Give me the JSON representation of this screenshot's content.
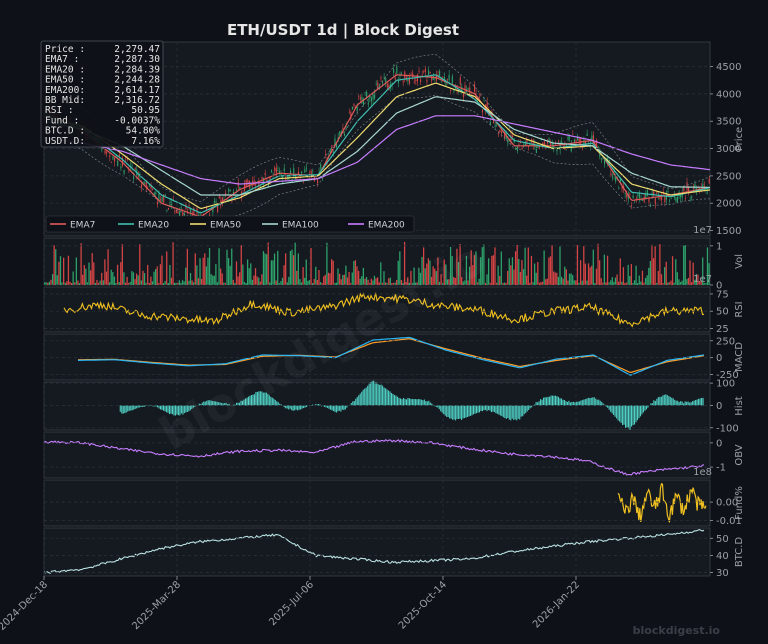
{
  "title": "ETH/USDT  1d  |  Block Digest",
  "watermark": "blockdigest.io",
  "brand": "blockdigest.io",
  "info_box": [
    {
      "k": "Price :",
      "v": "2,279.47"
    },
    {
      "k": "EMA7  :",
      "v": "2,287.30"
    },
    {
      "k": "EMA20 :",
      "v": "2,284.39"
    },
    {
      "k": "EMA50 :",
      "v": "2,244.28"
    },
    {
      "k": "EMA200:",
      "v": "2,614.17"
    },
    {
      "k": "BB Mid:",
      "v": "2,316.72"
    },
    {
      "k": "RSI   :",
      "v": "50.95"
    },
    {
      "k": "Fund  :",
      "v": "-0.0037%"
    },
    {
      "k": "BTC.D :",
      "v": "54.80%"
    },
    {
      "k": "USDT.D:",
      "v": "7.16%"
    }
  ],
  "x_tick_labels": [
    "2024-Dec-18",
    "2025-Mar-28",
    "2025-Jul-06",
    "2025-Oct-14",
    "2026-Jan-22"
  ],
  "colors": {
    "ema7": "#e05a5a",
    "ema20": "#3fbfb0",
    "ema50": "#f0dc6e",
    "ema100": "#a8d8d0",
    "ema200": "#c77dff",
    "rsi": "#f0c020",
    "macd": "#29b6f6",
    "signal": "#ff9f2a",
    "hist": "#4fd1c5",
    "obv": "#c77dff",
    "fund": "#f0c020",
    "btcd": "#b8e0e0",
    "up": "#2ea36b",
    "down": "#d64545",
    "grid": "#2a2f36"
  },
  "chart_data": [
    {
      "type": "line",
      "panel": "price",
      "ylabel": "Price",
      "y_ticks": [
        "1500",
        "2000",
        "2500",
        "3000",
        "3500",
        "4000",
        "4500"
      ],
      "ylim": [
        1400,
        4950
      ],
      "offset_text": "1e7",
      "legend": [
        "EMA7",
        "EMA20",
        "EMA50",
        "EMA100",
        "EMA200"
      ],
      "legend_placement": "lower-left",
      "x": [
        "2024-Dec-18",
        "2025-Jan-15",
        "2025-Feb-12",
        "2025-Mar-12",
        "2025-Apr-09",
        "2025-May-07",
        "2025-Jun-04",
        "2025-Jul-02",
        "2025-Jul-30",
        "2025-Aug-27",
        "2025-Sep-24",
        "2025-Oct-22",
        "2025-Nov-19",
        "2025-Dec-17",
        "2026-Jan-14",
        "2026-Feb-11",
        "2026-Mar-11",
        "2026-Apr-08"
      ],
      "series": [
        {
          "name": "EMA7",
          "values": [
            3700,
            3300,
            2750,
            2000,
            1750,
            2250,
            2550,
            2500,
            3800,
            4350,
            4300,
            4000,
            3050,
            3050,
            3150,
            2050,
            2150,
            2290
          ]
        },
        {
          "name": "EMA20",
          "values": [
            3650,
            3350,
            2800,
            2150,
            1820,
            2150,
            2500,
            2520,
            3500,
            4250,
            4350,
            3900,
            3150,
            3000,
            3100,
            2200,
            2120,
            2284
          ]
        },
        {
          "name": "EMA50",
          "values": [
            3600,
            3400,
            2900,
            2350,
            1900,
            2100,
            2450,
            2500,
            3200,
            3950,
            4200,
            3950,
            3250,
            3000,
            3050,
            2350,
            2150,
            2244
          ]
        },
        {
          "name": "EMA100",
          "values": [
            3500,
            3350,
            3050,
            2600,
            2150,
            2150,
            2350,
            2450,
            2950,
            3650,
            3950,
            3850,
            3350,
            3100,
            3050,
            2550,
            2300,
            2290
          ]
        },
        {
          "name": "EMA200",
          "values": [
            3200,
            3100,
            2950,
            2700,
            2450,
            2350,
            2400,
            2450,
            2750,
            3350,
            3600,
            3600,
            3450,
            3300,
            3150,
            2900,
            2700,
            2614
          ]
        }
      ]
    },
    {
      "type": "bar",
      "panel": "volume",
      "ylabel": "Vol",
      "y_ticks": [
        "0",
        "1"
      ],
      "ylim": [
        0,
        1.2
      ],
      "offset_text": "1e7"
    },
    {
      "type": "line",
      "panel": "rsi",
      "ylabel": "RSI",
      "y_ticks": [
        "25",
        "50",
        "75"
      ],
      "ylim": [
        20,
        85
      ],
      "values": [
        52,
        60,
        45,
        40,
        35,
        62,
        48,
        55,
        72,
        68,
        58,
        52,
        38,
        50,
        56,
        32,
        50,
        51
      ]
    },
    {
      "type": "line",
      "panel": "macd",
      "ylabel": "MACD",
      "y_ticks": [
        "-250",
        "0",
        "250"
      ],
      "ylim": [
        -330,
        350
      ],
      "series": [
        {
          "name": "MACD",
          "values": [
            -40,
            -30,
            -80,
            -120,
            -90,
            40,
            30,
            0,
            260,
            300,
            110,
            -30,
            -150,
            -20,
            40,
            -260,
            -40,
            40
          ]
        },
        {
          "name": "Signal",
          "values": [
            -30,
            -25,
            -70,
            -110,
            -100,
            20,
            35,
            10,
            220,
            280,
            130,
            -10,
            -130,
            -40,
            30,
            -220,
            -60,
            30
          ]
        }
      ]
    },
    {
      "type": "bar",
      "panel": "hist",
      "ylabel": "Hist",
      "y_ticks": [
        "-100",
        "0",
        "100"
      ],
      "ylim": [
        -110,
        105
      ]
    },
    {
      "type": "line",
      "panel": "obv",
      "ylabel": "OBV",
      "y_ticks": [
        "-1",
        "0"
      ],
      "ylim": [
        -1.45,
        0.45
      ],
      "offset_text": "1e8",
      "values": [
        0.05,
        0.0,
        -0.25,
        -0.45,
        -0.55,
        -0.35,
        -0.3,
        -0.4,
        0.05,
        0.1,
        0.0,
        -0.25,
        -0.45,
        -0.55,
        -0.75,
        -1.3,
        -1.1,
        -0.95
      ]
    },
    {
      "type": "line",
      "panel": "funding",
      "ylabel": "Fund%",
      "y_ticks": [
        "-0.01",
        "0.00"
      ],
      "ylim": [
        -0.013,
        0.012
      ],
      "x_start": "2026-Feb-11",
      "values": [
        0.005,
        -0.008,
        0.003,
        -0.01,
        0.006,
        -0.004,
        0.008,
        -0.009,
        0.004,
        -0.006,
        0.009,
        -0.003,
        -0.0037
      ]
    },
    {
      "type": "line",
      "panel": "btcd",
      "ylabel": "BTC.D",
      "y_ticks": [
        "30",
        "40",
        "50"
      ],
      "ylim": [
        28,
        56
      ],
      "values": [
        30,
        32,
        38,
        44,
        48,
        50,
        52,
        40,
        38,
        36,
        37,
        38,
        42,
        45,
        48,
        50,
        52,
        54.8
      ]
    }
  ]
}
